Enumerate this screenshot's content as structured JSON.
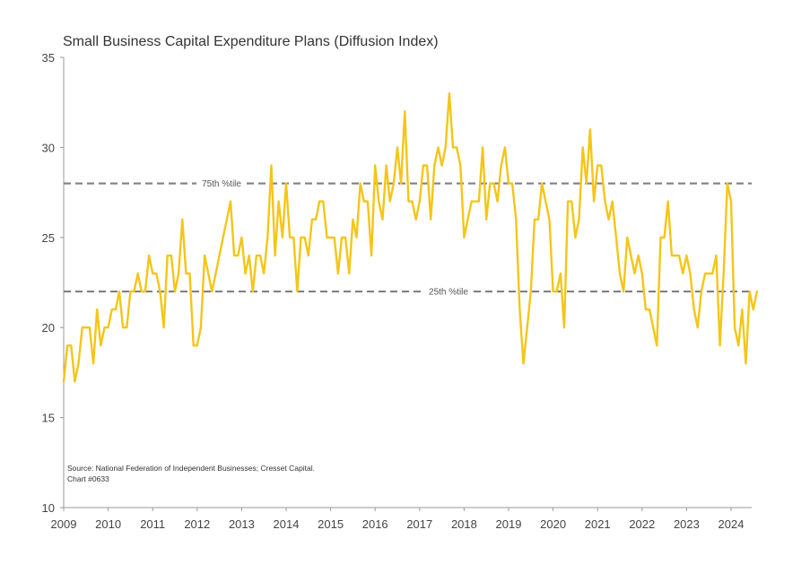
{
  "chart_data": {
    "type": "line",
    "title": "Small Business Capital Expenditure Plans (Diffusion Index)",
    "xlabel": "",
    "ylabel": "",
    "xlim": [
      2009,
      2024.6
    ],
    "ylim": [
      10,
      35
    ],
    "x_ticks": [
      "2009",
      "2010",
      "2011",
      "2012",
      "2013",
      "2014",
      "2015",
      "2016",
      "2017",
      "2018",
      "2019",
      "2020",
      "2021",
      "2022",
      "2023",
      "2024"
    ],
    "y_ticks": [
      "10",
      "15",
      "20",
      "25",
      "30",
      "35"
    ],
    "grid": false,
    "line_color": "#F5C518",
    "reference_lines": [
      {
        "label": "75th %tile",
        "value": 28,
        "color": "#808080"
      },
      {
        "label": "25th %tile",
        "value": 22,
        "color": "#808080"
      }
    ],
    "series": [
      {
        "start_year": 2009,
        "frequency": "monthly",
        "values": [
          17,
          19,
          19,
          17,
          18,
          20,
          20,
          20,
          18,
          21,
          19,
          20,
          20,
          21,
          21,
          22,
          20,
          20,
          22,
          22,
          23,
          22,
          22,
          24,
          23,
          23,
          22,
          20,
          24,
          24,
          22,
          23,
          26,
          23,
          23,
          19,
          19,
          20,
          24,
          23,
          22,
          23,
          24,
          25,
          26,
          27,
          24,
          24,
          25,
          23,
          24,
          22,
          24,
          24,
          23,
          25,
          29,
          24,
          27,
          25,
          28,
          25,
          25,
          22,
          25,
          25,
          24,
          26,
          26,
          27,
          27,
          25,
          25,
          25,
          23,
          25,
          25,
          23,
          26,
          25,
          28,
          27,
          27,
          24,
          29,
          27,
          26,
          29,
          27,
          28,
          30,
          28,
          32,
          27,
          27,
          26,
          27,
          29,
          29,
          26,
          29,
          30,
          29,
          30,
          33,
          30,
          30,
          29,
          25,
          26,
          27,
          27,
          27,
          30,
          26,
          28,
          28,
          27,
          29,
          30,
          28,
          28,
          26,
          21,
          18,
          20,
          22,
          26,
          26,
          28,
          27,
          26,
          22,
          22,
          23,
          20,
          27,
          27,
          25,
          26,
          30,
          28,
          31,
          27,
          29,
          29,
          27,
          26,
          27,
          25,
          23,
          22,
          25,
          24,
          23,
          24,
          23,
          21,
          21,
          20,
          19,
          25,
          25,
          27,
          24,
          24,
          24,
          23,
          24,
          23,
          21,
          20,
          22,
          23,
          23,
          23,
          24,
          19,
          23,
          28,
          27,
          20,
          19,
          21,
          18,
          22,
          21,
          22
        ]
      }
    ],
    "source_lines": [
      "Source: National Federation of Independent Businesses; Cresset Capital.",
      "Chart #0633"
    ]
  }
}
